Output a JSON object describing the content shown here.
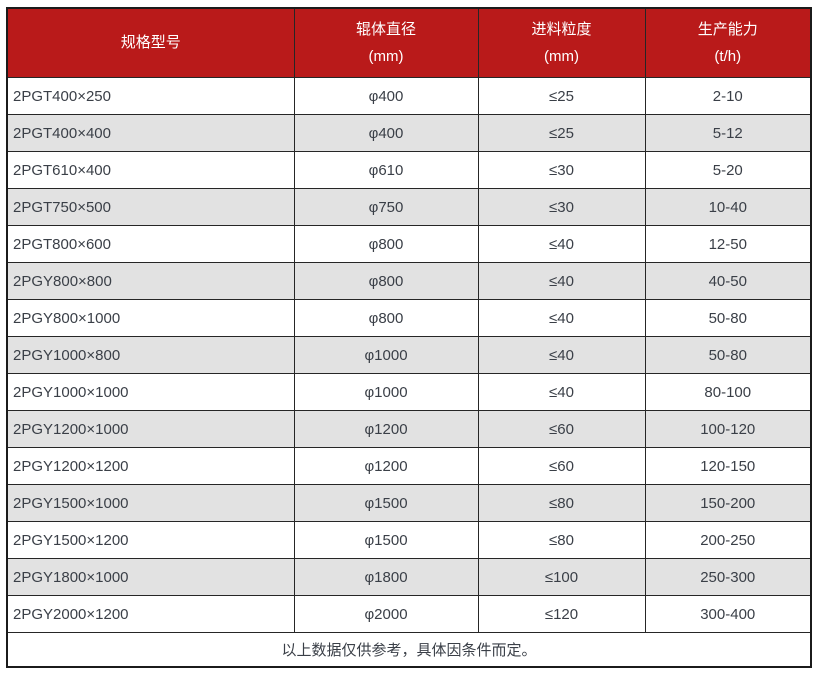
{
  "table": {
    "columns": [
      {
        "label": "规格型号",
        "unit": ""
      },
      {
        "label": "辊体直径",
        "unit": "(mm)"
      },
      {
        "label": "进料粒度",
        "unit": "(mm)"
      },
      {
        "label": "生产能力",
        "unit": "(t/h)"
      }
    ],
    "rows": [
      [
        "2PGT400×250",
        "φ400",
        "≤25",
        "2-10"
      ],
      [
        "2PGT400×400",
        "φ400",
        "≤25",
        "5-12"
      ],
      [
        "2PGT610×400",
        "φ610",
        "≤30",
        "5-20"
      ],
      [
        "2PGT750×500",
        "φ750",
        "≤30",
        "10-40"
      ],
      [
        "2PGT800×600",
        "φ800",
        "≤40",
        "12-50"
      ],
      [
        "2PGY800×800",
        "φ800",
        "≤40",
        "40-50"
      ],
      [
        "2PGY800×1000",
        "φ800",
        "≤40",
        "50-80"
      ],
      [
        "2PGY1000×800",
        "φ1000",
        "≤40",
        "50-80"
      ],
      [
        "2PGY1000×1000",
        "φ1000",
        "≤40",
        "80-100"
      ],
      [
        "2PGY1200×1000",
        "φ1200",
        "≤60",
        "100-120"
      ],
      [
        "2PGY1200×1200",
        "φ1200",
        "≤60",
        "120-150"
      ],
      [
        "2PGY1500×1000",
        "φ1500",
        "≤80",
        "150-200"
      ],
      [
        "2PGY1500×1200",
        "φ1500",
        "≤80",
        "200-250"
      ],
      [
        "2PGY1800×1000",
        "φ1800",
        "≤100",
        "250-300"
      ],
      [
        "2PGY2000×1200",
        "φ2000",
        "≤120",
        "300-400"
      ]
    ],
    "footer_note": "以上数据仅供参考，具体因条件而定。"
  },
  "colors": {
    "header_bg": "#b91a1a",
    "header_text": "#ffffff",
    "row_alt_bg": "#e2e2e2",
    "body_text": "#3a3f47",
    "border_inner": "#262626",
    "border_outer": "#1b1b1b"
  }
}
